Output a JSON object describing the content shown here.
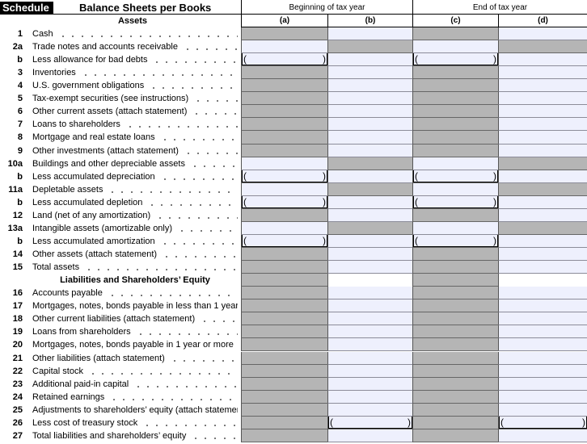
{
  "header": {
    "schedule": "Schedule L",
    "title": "Balance Sheets per Books",
    "assets_heading": "Assets",
    "groups": [
      "Beginning of tax year",
      "End of tax year"
    ],
    "columns": [
      "(a)",
      "(b)",
      "(c)",
      "(d)"
    ]
  },
  "paren_open": "(",
  "paren_close": ")",
  "colors": {
    "gray": "#b5b5b5",
    "field": "#eef0fd"
  },
  "rows": [
    {
      "num": "1",
      "label": "Cash",
      "cells": "GBGB"
    },
    {
      "num": "2a",
      "label": "Trade notes and accounts receivable",
      "cells": "BGBG"
    },
    {
      "num": "b",
      "label": "Less allowance for bad debts",
      "cells": "PBPB"
    },
    {
      "num": "3",
      "label": "Inventories",
      "cells": "GBGB"
    },
    {
      "num": "4",
      "label": "U.S. government obligations",
      "cells": "GBGB"
    },
    {
      "num": "5",
      "label": "Tax-exempt securities (see instructions)",
      "cells": "GBGB"
    },
    {
      "num": "6",
      "label": "Other current assets (attach statement)",
      "cells": "GBGB"
    },
    {
      "num": "7",
      "label": "Loans to shareholders",
      "cells": "GBGB"
    },
    {
      "num": "8",
      "label": "Mortgage and real estate loans",
      "cells": "GBGB"
    },
    {
      "num": "9",
      "label": "Other investments (attach statement)",
      "cells": "GBGB"
    },
    {
      "num": "10a",
      "label": "Buildings and other depreciable assets",
      "cells": "BGBG"
    },
    {
      "num": "b",
      "label": "Less accumulated depreciation",
      "cells": "PBPB"
    },
    {
      "num": "11a",
      "label": "Depletable assets",
      "cells": "BGBG"
    },
    {
      "num": "b",
      "label": "Less accumulated depletion",
      "cells": "PBPB"
    },
    {
      "num": "12",
      "label": "Land (net of any amortization)",
      "cells": "GBGB"
    },
    {
      "num": "13a",
      "label": "Intangible assets (amortizable only)",
      "cells": "BGBG"
    },
    {
      "num": "b",
      "label": "Less accumulated amortization",
      "cells": "PBPB"
    },
    {
      "num": "14",
      "label": "Other assets (attach statement)",
      "cells": "GBGB"
    },
    {
      "num": "15",
      "label": "Total assets",
      "cells": "GBGB"
    },
    {
      "num": "",
      "label": "Liabilities and Shareholders’ Equity",
      "cells": "GWGW",
      "heading": true
    },
    {
      "num": "16",
      "label": "Accounts payable",
      "cells": "GBGB"
    },
    {
      "num": "17",
      "label": "Mortgages, notes, bonds payable in less than 1 year",
      "cells": "GBGB"
    },
    {
      "num": "18",
      "label": "Other current liabilities (attach statement)",
      "cells": "GBGB"
    },
    {
      "num": "19",
      "label": "Loans from shareholders",
      "cells": "GBGB"
    },
    {
      "num": "20",
      "label": "Mortgages, notes, bonds payable in 1 year or more",
      "cells": "GBGB"
    },
    {
      "num": "21",
      "label": "Other liabilities (attach statement)",
      "cells": "GBGB"
    },
    {
      "num": "22",
      "label": "Capital stock",
      "cells": "GBGB"
    },
    {
      "num": "23",
      "label": "Additional paid-in capital",
      "cells": "GBGB"
    },
    {
      "num": "24",
      "label": "Retained earnings",
      "cells": "GBGB"
    },
    {
      "num": "25",
      "label": "Adjustments to shareholders’ equity (attach statement)",
      "cells": "GBGB"
    },
    {
      "num": "26",
      "label": "Less cost of treasury stock",
      "cells": "GPGP"
    },
    {
      "num": "27",
      "label": "Total liabilities and shareholders’ equity",
      "cells": "GBGB"
    }
  ]
}
